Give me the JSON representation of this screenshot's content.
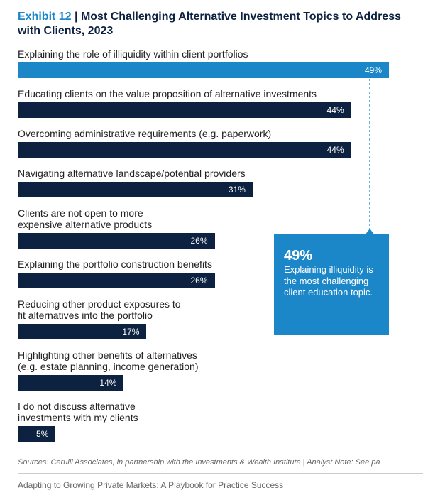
{
  "chart_data": {
    "type": "bar",
    "orientation": "horizontal",
    "exhibit": "Exhibit 12",
    "title": "| Most Challenging Alternative Investment Topics to Address with Clients, 2023",
    "categories": [
      "Explaining the role of illiquidity within client portfolios",
      "Educating clients on the value proposition of alternative investments",
      "Overcoming administrative requirements (e.g. paperwork)",
      "Navigating alternative landscape/potential providers",
      "Clients are not open to more\nexpensive alternative products",
      "Explaining the portfolio construction benefits",
      "Reducing other product exposures to\nfit alternatives into the portfolio",
      "Highlighting other benefits of alternatives\n(e.g. estate planning, income generation)",
      "I do not discuss alternative\ninvestments with my clients"
    ],
    "values": [
      49,
      44,
      44,
      31,
      26,
      26,
      17,
      14,
      5
    ],
    "value_labels": [
      "49%",
      "44%",
      "44%",
      "31%",
      "26%",
      "26%",
      "17%",
      "14%",
      "5%"
    ],
    "colors": [
      "#1b87c9",
      "#0d2240",
      "#0d2240",
      "#0d2240",
      "#0d2240",
      "#0d2240",
      "#0d2240",
      "#0d2240",
      "#0d2240"
    ],
    "annotation": {
      "headline": "49%",
      "text": "Explaining illiquidity is the most challenging client education topic.",
      "color": "#1b87c9"
    },
    "source": "Sources: Cerulli Associates, in partnership with the Investments & Wealth Institute | Analyst Note: See pa",
    "footer": "Adapting to Growing Private Markets: A Playbook for Practice Success"
  }
}
